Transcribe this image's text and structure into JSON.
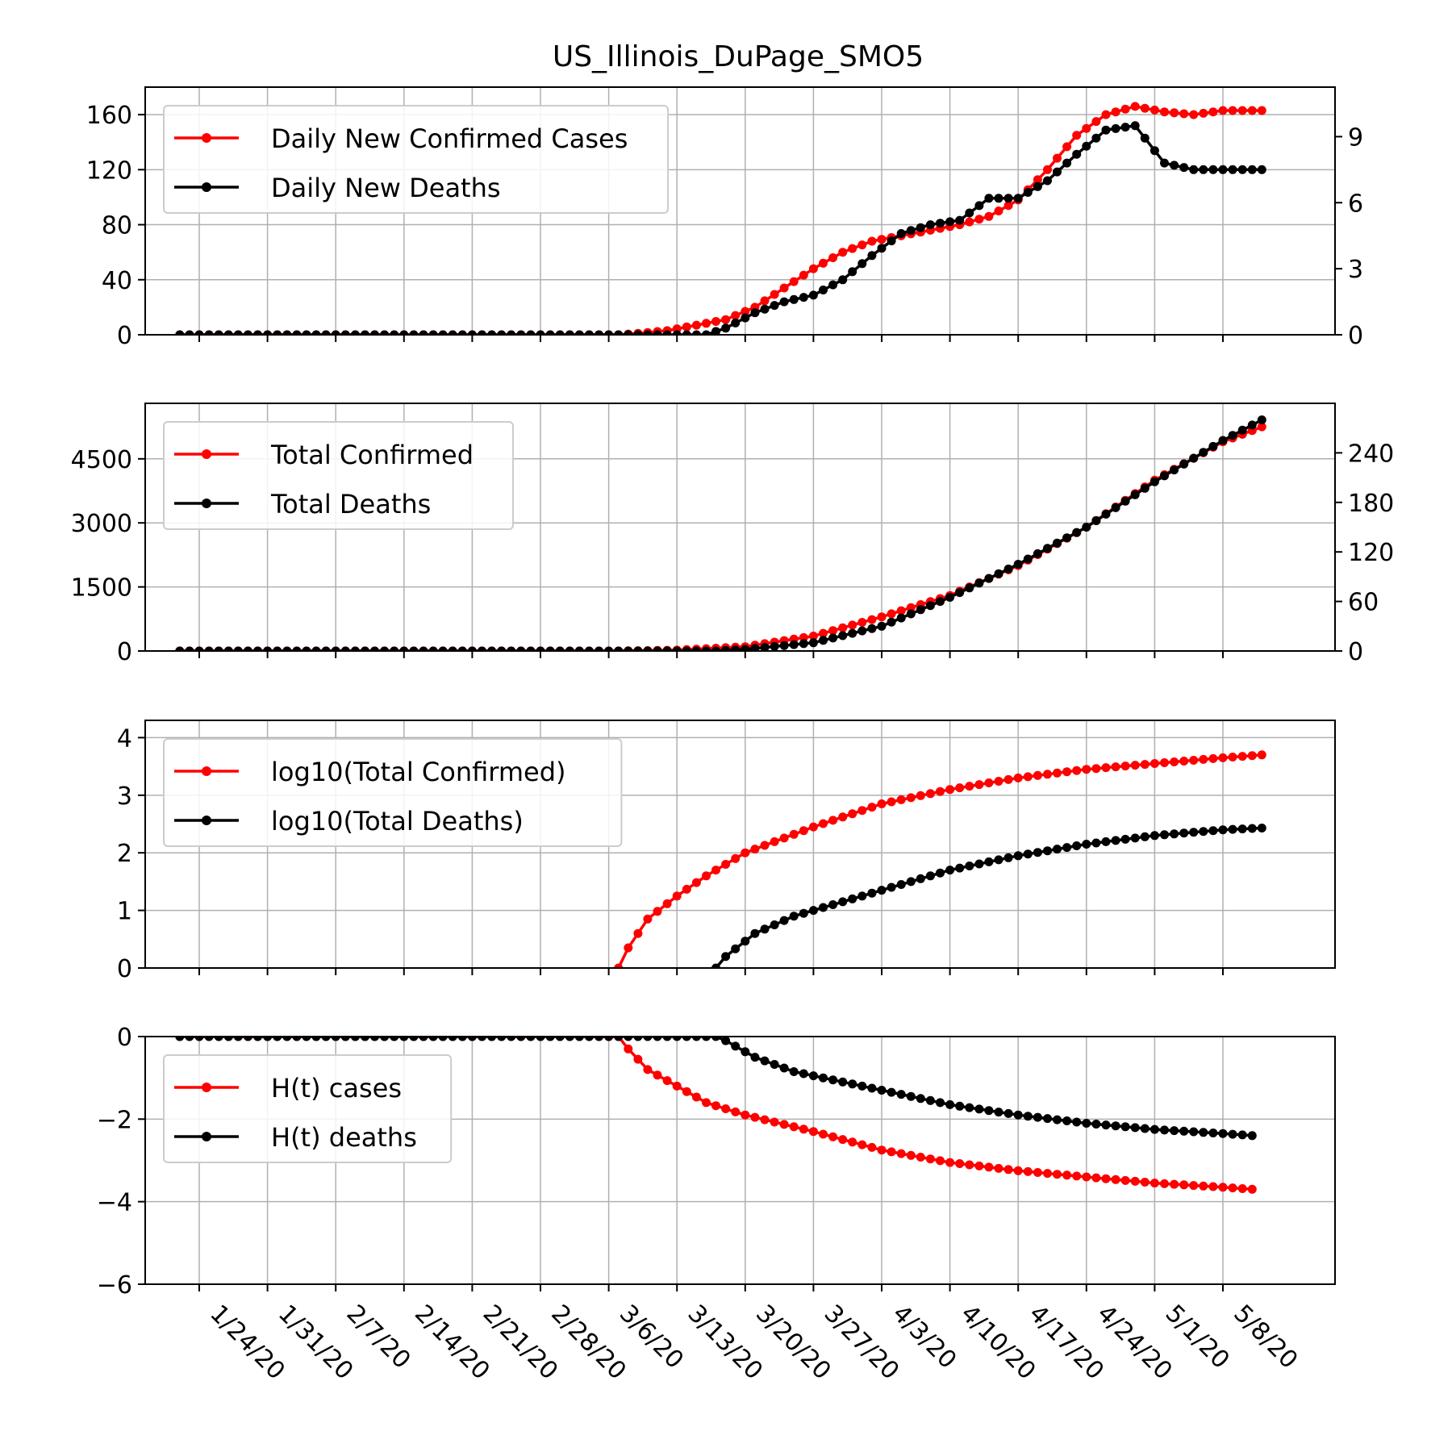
{
  "figure_title": "US_Illinois_DuPage_SMO5",
  "colors": {
    "cases": "#ff0000",
    "deaths": "#000000",
    "grid": "#b0b0b0"
  },
  "x_axis": {
    "start_date": "1/22/20",
    "end_date": "5/12/20",
    "tick_labels": [
      "1/24/20",
      "1/31/20",
      "2/7/20",
      "2/14/20",
      "2/21/20",
      "2/28/20",
      "3/6/20",
      "3/13/20",
      "3/20/20",
      "3/27/20",
      "4/3/20",
      "4/10/20",
      "4/17/20",
      "4/24/20",
      "5/1/20",
      "5/8/20"
    ],
    "tick_dates": [
      "1/24/20",
      "1/31/20",
      "2/7/20",
      "2/14/20",
      "2/21/20",
      "2/28/20",
      "3/6/20",
      "3/13/20",
      "3/20/20",
      "3/27/20",
      "4/3/20",
      "4/10/20",
      "4/17/20",
      "4/24/20",
      "5/1/20",
      "5/8/20"
    ]
  },
  "chart_data": [
    {
      "type": "line",
      "name": "daily",
      "grid": true,
      "legend_position": "top-left",
      "y_left": {
        "ylim": [
          0,
          180
        ],
        "ticks": [
          0,
          40,
          80,
          120,
          160
        ],
        "tick_labels": [
          "0",
          "40",
          "80",
          "120",
          "160"
        ]
      },
      "y_right": {
        "ylim": [
          0,
          11.25
        ],
        "ticks": [
          0,
          3,
          6,
          9
        ],
        "tick_labels": [
          "0",
          "3",
          "6",
          "9"
        ]
      },
      "series": [
        {
          "name": "Daily New Confirmed Cases",
          "axis": "left",
          "color": "#ff0000",
          "points": [
            [
              "1/22/20",
              0
            ],
            [
              "3/7/20",
              0
            ],
            [
              "3/9/20",
              1
            ],
            [
              "3/12/20",
              3
            ],
            [
              "3/15/20",
              7
            ],
            [
              "3/18/20",
              11
            ],
            [
              "3/21/20",
              20
            ],
            [
              "3/24/20",
              34
            ],
            [
              "3/27/20",
              48
            ],
            [
              "3/30/20",
              60
            ],
            [
              "4/2/20",
              68
            ],
            [
              "4/5/20",
              72
            ],
            [
              "4/8/20",
              76
            ],
            [
              "4/11/20",
              80
            ],
            [
              "4/14/20",
              86
            ],
            [
              "4/17/20",
              98
            ],
            [
              "4/20/20",
              120
            ],
            [
              "4/23/20",
              145
            ],
            [
              "4/26/20",
              160
            ],
            [
              "4/29/20",
              166
            ],
            [
              "5/2/20",
              162
            ],
            [
              "5/5/20",
              160
            ],
            [
              "5/8/20",
              163
            ],
            [
              "5/12/20",
              163
            ]
          ]
        },
        {
          "name": "Daily New Deaths",
          "axis": "right",
          "color": "#000000",
          "points": [
            [
              "1/22/20",
              0
            ],
            [
              "3/16/20",
              0
            ],
            [
              "3/18/20",
              0.3
            ],
            [
              "3/21/20",
              1.0
            ],
            [
              "3/24/20",
              1.5
            ],
            [
              "3/27/20",
              1.8
            ],
            [
              "3/30/20",
              2.5
            ],
            [
              "4/2/20",
              3.6
            ],
            [
              "4/5/20",
              4.6
            ],
            [
              "4/8/20",
              5.0
            ],
            [
              "4/11/20",
              5.2
            ],
            [
              "4/14/20",
              6.2
            ],
            [
              "4/17/20",
              6.2
            ],
            [
              "4/20/20",
              7.0
            ],
            [
              "4/23/20",
              8.2
            ],
            [
              "4/26/20",
              9.3
            ],
            [
              "4/29/20",
              9.5
            ],
            [
              "5/2/20",
              7.8
            ],
            [
              "5/5/20",
              7.5
            ],
            [
              "5/8/20",
              7.5
            ],
            [
              "5/12/20",
              7.5
            ]
          ]
        }
      ]
    },
    {
      "type": "line",
      "name": "totals",
      "grid": true,
      "legend_position": "top-left",
      "y_left": {
        "ylim": [
          0,
          5800
        ],
        "ticks": [
          0,
          1500,
          3000,
          4500
        ],
        "tick_labels": [
          "0",
          "1500",
          "3000",
          "4500"
        ]
      },
      "y_right": {
        "ylim": [
          0,
          300
        ],
        "ticks": [
          0,
          60,
          120,
          180,
          240
        ],
        "tick_labels": [
          "0",
          "60",
          "120",
          "180",
          "240"
        ]
      },
      "series": [
        {
          "name": "Total Confirmed",
          "axis": "left",
          "color": "#ff0000",
          "points": [
            [
              "1/22/20",
              0
            ],
            [
              "3/7/20",
              0
            ],
            [
              "3/13/20",
              20
            ],
            [
              "3/20/20",
              100
            ],
            [
              "3/27/20",
              350
            ],
            [
              "4/3/20",
              800
            ],
            [
              "4/10/20",
              1300
            ],
            [
              "4/17/20",
              2000
            ],
            [
              "4/24/20",
              2900
            ],
            [
              "5/1/20",
              4000
            ],
            [
              "5/8/20",
              4900
            ],
            [
              "5/12/20",
              5250
            ]
          ]
        },
        {
          "name": "Total Deaths",
          "axis": "right",
          "color": "#000000",
          "points": [
            [
              "1/22/20",
              0
            ],
            [
              "3/17/20",
              0
            ],
            [
              "3/20/20",
              2
            ],
            [
              "3/27/20",
              10
            ],
            [
              "4/3/20",
              30
            ],
            [
              "4/10/20",
              65
            ],
            [
              "4/17/20",
              105
            ],
            [
              "4/24/20",
              150
            ],
            [
              "5/1/20",
              205
            ],
            [
              "5/8/20",
              255
            ],
            [
              "5/12/20",
              280
            ]
          ]
        }
      ]
    },
    {
      "type": "line",
      "name": "log10",
      "grid": true,
      "legend_position": "top-left",
      "y_left": {
        "ylim": [
          0,
          4.3
        ],
        "ticks": [
          0,
          1,
          2,
          3,
          4
        ],
        "tick_labels": [
          "0",
          "1",
          "2",
          "3",
          "4"
        ]
      },
      "series": [
        {
          "name": "log10(Total Confirmed)",
          "color": "#ff0000",
          "points": [
            [
              "3/7/20",
              0
            ],
            [
              "3/8/20",
              0.35
            ],
            [
              "3/10/20",
              0.85
            ],
            [
              "3/13/20",
              1.25
            ],
            [
              "3/16/20",
              1.6
            ],
            [
              "3/20/20",
              2.0
            ],
            [
              "3/27/20",
              2.45
            ],
            [
              "4/3/20",
              2.85
            ],
            [
              "4/10/20",
              3.1
            ],
            [
              "4/17/20",
              3.3
            ],
            [
              "4/24/20",
              3.45
            ],
            [
              "5/1/20",
              3.55
            ],
            [
              "5/8/20",
              3.65
            ],
            [
              "5/12/20",
              3.7
            ]
          ]
        },
        {
          "name": "log10(Total Deaths)",
          "color": "#000000",
          "points": [
            [
              "3/17/20",
              0
            ],
            [
              "3/18/20",
              0.2
            ],
            [
              "3/21/20",
              0.6
            ],
            [
              "3/25/20",
              0.9
            ],
            [
              "3/30/20",
              1.15
            ],
            [
              "4/5/20",
              1.45
            ],
            [
              "4/10/20",
              1.7
            ],
            [
              "4/17/20",
              1.95
            ],
            [
              "4/24/20",
              2.15
            ],
            [
              "5/1/20",
              2.3
            ],
            [
              "5/8/20",
              2.4
            ],
            [
              "5/12/20",
              2.43
            ]
          ]
        }
      ]
    },
    {
      "type": "line",
      "name": "hazard",
      "grid": true,
      "legend_position": "top-left",
      "y_left": {
        "ylim": [
          -6,
          0
        ],
        "ticks": [
          0,
          -2,
          -4,
          -6
        ],
        "tick_labels": [
          "0",
          "−2",
          "−4",
          "−6"
        ]
      },
      "series": [
        {
          "name": "H(t) cases",
          "color": "#ff0000",
          "points": [
            [
              "1/22/20",
              0
            ],
            [
              "3/7/20",
              0
            ],
            [
              "3/8/20",
              -0.3
            ],
            [
              "3/10/20",
              -0.8
            ],
            [
              "3/13/20",
              -1.2
            ],
            [
              "3/16/20",
              -1.6
            ],
            [
              "3/20/20",
              -1.9
            ],
            [
              "3/27/20",
              -2.3
            ],
            [
              "4/3/20",
              -2.75
            ],
            [
              "4/10/20",
              -3.05
            ],
            [
              "4/17/20",
              -3.25
            ],
            [
              "4/24/20",
              -3.4
            ],
            [
              "5/1/20",
              -3.55
            ],
            [
              "5/8/20",
              -3.65
            ],
            [
              "5/11/20",
              -3.7
            ]
          ]
        },
        {
          "name": "H(t) deaths",
          "color": "#000000",
          "points": [
            [
              "1/22/20",
              0
            ],
            [
              "3/17/20",
              0
            ],
            [
              "3/18/20",
              -0.1
            ],
            [
              "3/21/20",
              -0.5
            ],
            [
              "3/25/20",
              -0.85
            ],
            [
              "3/30/20",
              -1.1
            ],
            [
              "4/5/20",
              -1.4
            ],
            [
              "4/10/20",
              -1.65
            ],
            [
              "4/17/20",
              -1.9
            ],
            [
              "4/24/20",
              -2.1
            ],
            [
              "5/1/20",
              -2.25
            ],
            [
              "5/8/20",
              -2.35
            ],
            [
              "5/11/20",
              -2.4
            ]
          ]
        }
      ]
    }
  ]
}
